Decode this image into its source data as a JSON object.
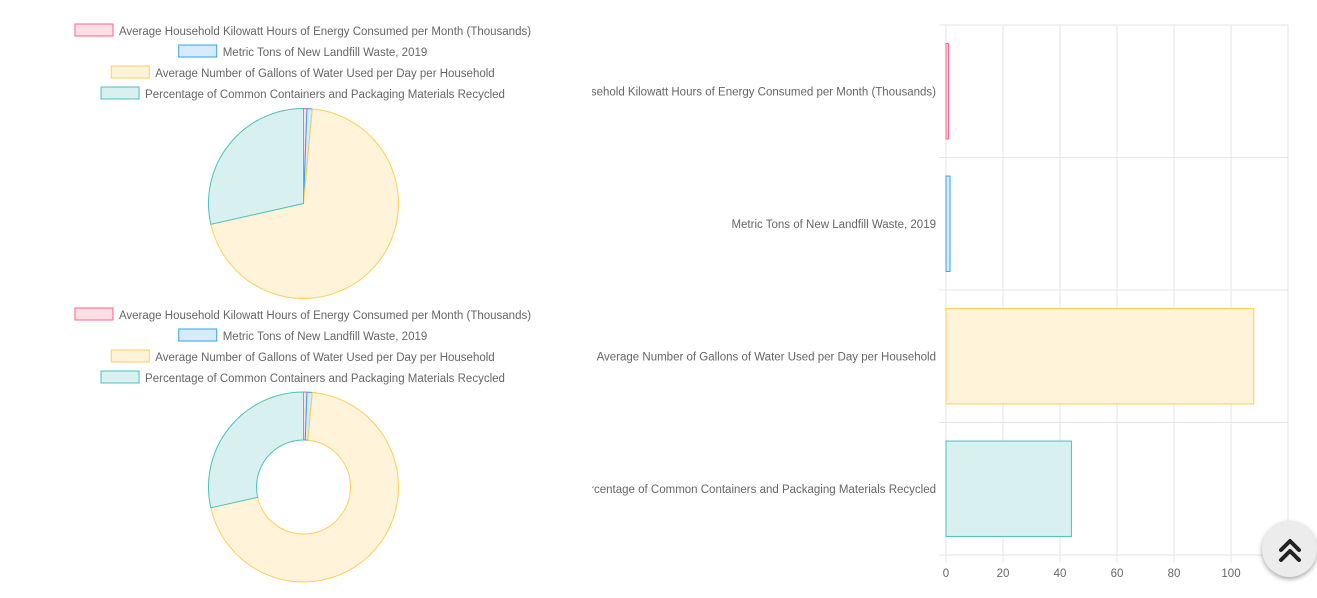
{
  "chart_data": [
    {
      "type": "pie",
      "categories": [
        "Average Household Kilowatt Hours of Energy Consumed per Month (Thousands)",
        "Metric Tons of New Landfill Waste, 2019",
        "Average Number of Gallons of Water Used per Day per Household",
        "Percentage of Common Containers and Packaging Materials Recycled"
      ],
      "values": [
        0.9,
        1.4,
        108,
        44
      ],
      "legend": "top"
    },
    {
      "type": "pie",
      "donut": true,
      "categories": [
        "Average Household Kilowatt Hours of Energy Consumed per Month (Thousands)",
        "Metric Tons of New Landfill Waste, 2019",
        "Average Number of Gallons of Water Used per Day per Household",
        "Percentage of Common Containers and Packaging Materials Recycled"
      ],
      "values": [
        0.9,
        1.4,
        108,
        44
      ],
      "legend": "top"
    },
    {
      "type": "bar",
      "orientation": "horizontal",
      "categories": [
        "Average Household Kilowatt Hours of Energy Consumed per Month (Thousands)",
        "Metric Tons of New Landfill Waste, 2019",
        "Average Number of Gallons of Water Used per Day per Household",
        "Percentage of Common Containers and Packaging Materials Recycled"
      ],
      "values": [
        0.9,
        1.4,
        108,
        44
      ],
      "xticks": [
        "0",
        "20",
        "40",
        "60",
        "80",
        "100"
      ],
      "xlim": [
        0,
        120
      ],
      "grid": true,
      "legend": "none"
    }
  ],
  "colors": {
    "fill": [
      "#ffdfe5",
      "#d6ebfb",
      "#fff4d9",
      "#d8f0f0"
    ],
    "stroke": [
      "#ff6384",
      "#36a2eb",
      "#ffcd56",
      "#4bc0c0"
    ],
    "grid": "#e5e5e5",
    "text": "#666666"
  },
  "scroll_top": {
    "icon": "double-chevron-up-icon"
  }
}
